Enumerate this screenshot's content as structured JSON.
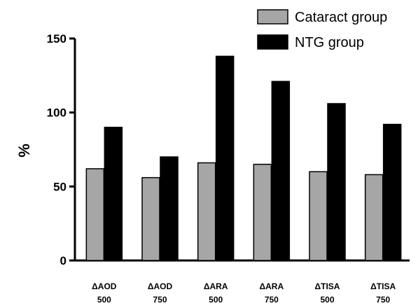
{
  "chart_data": {
    "type": "bar",
    "categories": [
      [
        "ΔAOD",
        "500"
      ],
      [
        "ΔAOD",
        "750"
      ],
      [
        "ΔARA",
        "500"
      ],
      [
        "ΔARA",
        "750"
      ],
      [
        "ΔTISA",
        "500"
      ],
      [
        "ΔTISA",
        "750"
      ]
    ],
    "series": [
      {
        "name": "Cataract group",
        "color": "#a6a6a6",
        "values": [
          62,
          56,
          66,
          65,
          60,
          58
        ]
      },
      {
        "name": "NTG group",
        "color": "#000000",
        "values": [
          90,
          70,
          138,
          121,
          106,
          92
        ]
      }
    ],
    "title": "",
    "xlabel": "",
    "ylabel": "%",
    "ylim": [
      0,
      150
    ],
    "yticks": [
      "0",
      "50",
      "100",
      "150"
    ],
    "grid": false,
    "legend_position": "top-right"
  }
}
